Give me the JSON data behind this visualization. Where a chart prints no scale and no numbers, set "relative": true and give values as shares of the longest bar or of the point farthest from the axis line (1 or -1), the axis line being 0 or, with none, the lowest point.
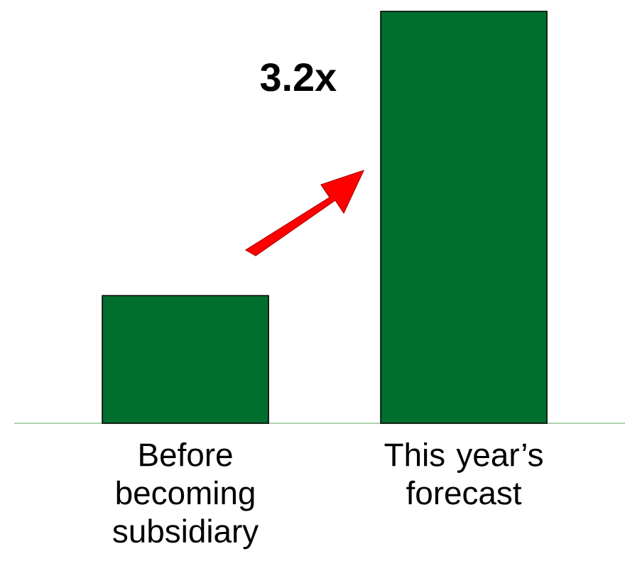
{
  "chart_data": {
    "type": "bar",
    "categories": [
      "Before becoming subsidiary",
      "This year’s forecast"
    ],
    "values": [
      0.31,
      1
    ],
    "color": "#006f2e",
    "relative": true,
    "annotations": [
      "3.2x"
    ]
  }
}
